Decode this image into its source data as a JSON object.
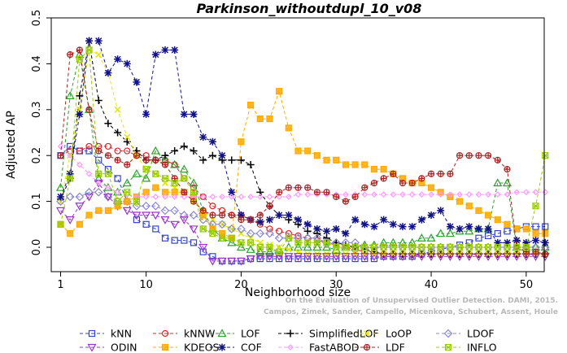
{
  "watermark": {
    "line1": "Campos, Zimek, Sander, Campello, Micenkova, Schubert, Assent, Houle",
    "line2": "On the Evaluation of Unsupervised Outlier Detection. DAMI, 2015."
  },
  "chart_data": {
    "type": "line",
    "title": "Parkinson_withoutdupl_10_v08",
    "xlabel": "Neighborhood size",
    "ylabel": "Adjusted AP",
    "xlim": [
      1,
      52
    ],
    "ylim": [
      -0.04,
      0.5
    ],
    "xticks": [
      1,
      10,
      20,
      30,
      40,
      50
    ],
    "yticks": [
      0.0,
      0.1,
      0.2,
      0.3,
      0.4,
      0.5
    ],
    "grid": false,
    "legend_position": "bottom",
    "x": [
      1,
      2,
      3,
      4,
      5,
      6,
      7,
      8,
      9,
      10,
      11,
      12,
      13,
      14,
      15,
      16,
      17,
      18,
      19,
      20,
      21,
      22,
      23,
      24,
      25,
      26,
      27,
      28,
      29,
      30,
      31,
      32,
      33,
      34,
      35,
      36,
      37,
      38,
      39,
      40,
      41,
      42,
      43,
      44,
      45,
      46,
      47,
      48,
      49,
      50,
      51,
      52
    ],
    "series": [
      {
        "name": "kNN",
        "color": "#3344cc",
        "marker": "square",
        "dash": "4,3",
        "values": [
          0.2,
          0.22,
          0.21,
          0.21,
          0.19,
          0.17,
          0.15,
          0.1,
          0.06,
          0.05,
          0.04,
          0.02,
          0.015,
          0.015,
          0.01,
          -0.01,
          -0.02,
          -0.03,
          -0.03,
          -0.03,
          -0.025,
          -0.025,
          -0.025,
          -0.025,
          -0.025,
          -0.025,
          -0.025,
          -0.025,
          -0.025,
          -0.025,
          -0.025,
          -0.025,
          -0.025,
          -0.025,
          -0.02,
          -0.02,
          -0.02,
          -0.02,
          -0.015,
          -0.01,
          -0.005,
          0.0,
          0.005,
          0.01,
          0.02,
          0.025,
          0.03,
          0.035,
          0.04,
          0.045,
          0.045,
          0.045
        ]
      },
      {
        "name": "kNNW",
        "color": "#d62728",
        "marker": "circle",
        "dash": "4,3",
        "values": [
          0.2,
          0.21,
          0.21,
          0.22,
          0.22,
          0.22,
          0.21,
          0.21,
          0.2,
          0.2,
          0.19,
          0.19,
          0.18,
          0.15,
          0.13,
          0.11,
          0.09,
          0.08,
          0.07,
          0.07,
          0.06,
          0.05,
          0.04,
          0.035,
          0.03,
          0.025,
          0.02,
          0.015,
          0.01,
          0.005,
          0.0,
          -0.005,
          -0.01,
          -0.01,
          -0.015,
          -0.015,
          -0.015,
          -0.015,
          -0.015,
          -0.015,
          -0.015,
          -0.015,
          -0.015,
          -0.015,
          -0.015,
          -0.015,
          -0.015,
          -0.015,
          -0.015,
          -0.015,
          -0.015,
          -0.015
        ]
      },
      {
        "name": "LOF",
        "color": "#2ca02c",
        "marker": "triangle-up",
        "dash": "4,3",
        "values": [
          0.13,
          0.33,
          0.42,
          0.3,
          0.15,
          0.13,
          0.12,
          0.14,
          0.16,
          0.15,
          0.21,
          0.19,
          0.18,
          0.17,
          0.14,
          0.08,
          0.04,
          0.02,
          0.01,
          0.0,
          -0.005,
          -0.01,
          -0.01,
          -0.005,
          0.0,
          0.0,
          0.0,
          0.0,
          0.0,
          -0.005,
          0.0,
          0.0,
          0.005,
          0.005,
          0.01,
          0.01,
          0.01,
          0.01,
          0.02,
          0.02,
          0.03,
          0.03,
          0.035,
          0.035,
          0.04,
          0.04,
          0.14,
          0.14,
          0.0,
          0.0,
          0.0,
          0.0
        ]
      },
      {
        "name": "SimplifiedLOF",
        "color": "#000000",
        "marker": "plus",
        "dash": "4,3",
        "values": [
          0.105,
          0.15,
          0.33,
          0.45,
          0.32,
          0.27,
          0.25,
          0.23,
          0.21,
          0.19,
          0.19,
          0.2,
          0.21,
          0.22,
          0.21,
          0.19,
          0.2,
          0.19,
          0.19,
          0.19,
          0.18,
          0.12,
          0.09,
          0.07,
          0.06,
          0.05,
          0.035,
          0.03,
          0.02,
          0.01,
          0.005,
          0.0,
          -0.005,
          -0.01,
          -0.015,
          -0.015,
          -0.015,
          -0.015,
          -0.015,
          -0.015,
          -0.015,
          -0.015,
          -0.015,
          -0.015,
          -0.015,
          -0.015,
          -0.015,
          -0.015,
          -0.015,
          -0.015,
          -0.015,
          -0.015
        ]
      },
      {
        "name": "LoOP",
        "color": "#e6e600",
        "marker": "x",
        "dash": "4,3",
        "values": [
          0.1,
          0.2,
          0.3,
          0.43,
          0.42,
          0.38,
          0.3,
          0.24,
          0.2,
          0.17,
          0.16,
          0.14,
          0.13,
          0.12,
          0.1,
          0.08,
          0.06,
          0.05,
          0.04,
          0.03,
          0.02,
          0.01,
          0.005,
          0.0,
          -0.005,
          -0.01,
          -0.015,
          -0.015,
          -0.015,
          -0.015,
          -0.015,
          -0.015,
          -0.015,
          -0.015,
          -0.015,
          -0.015,
          -0.015,
          -0.015,
          -0.015,
          -0.015,
          -0.015,
          -0.015,
          -0.015,
          -0.015,
          -0.015,
          -0.015,
          -0.015,
          -0.015,
          -0.015,
          -0.015,
          -0.015,
          -0.015
        ]
      },
      {
        "name": "LDOF",
        "color": "#8888cc",
        "marker": "diamond",
        "dash": "4,3",
        "values": [
          0.1,
          0.11,
          0.11,
          0.12,
          0.12,
          0.11,
          0.1,
          0.1,
          0.09,
          0.09,
          0.09,
          0.08,
          0.08,
          0.07,
          0.07,
          0.06,
          0.05,
          0.05,
          0.04,
          0.04,
          0.03,
          0.03,
          0.03,
          0.02,
          0.02,
          0.02,
          0.02,
          0.02,
          0.01,
          0.01,
          0.01,
          0.01,
          0.0,
          0.0,
          0.0,
          0.0,
          0.0,
          0.0,
          0.0,
          0.0,
          0.0,
          0.0,
          0.0,
          0.0,
          0.0,
          0.0,
          0.0,
          0.0,
          0.0,
          0.0,
          0.0,
          0.0
        ]
      },
      {
        "name": "ODIN",
        "color": "#9933cc",
        "marker": "triangle-down",
        "dash": "4,3",
        "values": [
          0.08,
          0.06,
          0.09,
          0.11,
          0.14,
          0.11,
          0.09,
          0.08,
          0.07,
          0.07,
          0.07,
          0.06,
          0.05,
          0.06,
          0.04,
          0.0,
          -0.03,
          -0.03,
          -0.03,
          -0.03,
          -0.025,
          -0.02,
          -0.02,
          -0.02,
          -0.02,
          -0.02,
          -0.02,
          -0.02,
          -0.02,
          -0.02,
          -0.02,
          -0.02,
          -0.02,
          -0.02,
          -0.02,
          -0.02,
          -0.02,
          -0.02,
          -0.02,
          -0.02,
          -0.02,
          -0.02,
          -0.02,
          -0.02,
          -0.02,
          -0.02,
          -0.02,
          -0.02,
          -0.02,
          -0.02,
          -0.02,
          -0.02
        ]
      },
      {
        "name": "KDEOS",
        "color": "#ffaa00",
        "marker": "square-filled",
        "dash": "4,3",
        "values": [
          0.05,
          0.03,
          0.05,
          0.07,
          0.08,
          0.08,
          0.09,
          0.1,
          0.11,
          0.12,
          0.13,
          0.12,
          0.12,
          0.12,
          0.11,
          0.07,
          0.04,
          0.03,
          0.02,
          0.23,
          0.31,
          0.28,
          0.28,
          0.34,
          0.26,
          0.21,
          0.21,
          0.2,
          0.19,
          0.19,
          0.18,
          0.18,
          0.18,
          0.17,
          0.17,
          0.16,
          0.15,
          0.14,
          0.14,
          0.13,
          0.12,
          0.11,
          0.1,
          0.09,
          0.08,
          0.07,
          0.06,
          0.05,
          0.04,
          0.04,
          0.03,
          0.03
        ]
      },
      {
        "name": "COF",
        "color": "#111188",
        "marker": "asterisk",
        "dash": "4,3",
        "values": [
          0.11,
          0.16,
          0.29,
          0.45,
          0.45,
          0.38,
          0.41,
          0.4,
          0.36,
          0.29,
          0.42,
          0.43,
          0.43,
          0.29,
          0.29,
          0.24,
          0.23,
          0.2,
          0.12,
          0.07,
          0.06,
          0.055,
          0.06,
          0.07,
          0.07,
          0.06,
          0.05,
          0.04,
          0.035,
          0.04,
          0.03,
          0.06,
          0.05,
          0.045,
          0.06,
          0.05,
          0.045,
          0.045,
          0.06,
          0.07,
          0.08,
          0.045,
          0.04,
          0.045,
          0.04,
          0.04,
          0.01,
          0.01,
          0.015,
          0.01,
          0.015,
          0.01
        ]
      },
      {
        "name": "FastABOD",
        "color": "#ff99ff",
        "marker": "diamond-small",
        "dash": "4,3",
        "values": [
          0.22,
          0.2,
          0.18,
          0.16,
          0.14,
          0.13,
          0.12,
          0.115,
          0.11,
          0.11,
          0.11,
          0.11,
          0.11,
          0.11,
          0.11,
          0.11,
          0.11,
          0.11,
          0.11,
          0.11,
          0.11,
          0.11,
          0.11,
          0.11,
          0.11,
          0.115,
          0.115,
          0.115,
          0.115,
          0.115,
          0.115,
          0.115,
          0.115,
          0.115,
          0.115,
          0.115,
          0.115,
          0.115,
          0.115,
          0.115,
          0.115,
          0.115,
          0.115,
          0.115,
          0.115,
          0.115,
          0.115,
          0.115,
          0.12,
          0.12,
          0.12,
          0.12
        ]
      },
      {
        "name": "LDF",
        "color": "#aa2222",
        "marker": "circle-plus",
        "dash": "4,3",
        "values": [
          0.2,
          0.42,
          0.43,
          0.3,
          0.21,
          0.2,
          0.19,
          0.18,
          0.2,
          0.19,
          0.19,
          0.18,
          0.15,
          0.12,
          0.1,
          0.08,
          0.07,
          0.07,
          0.07,
          0.06,
          0.06,
          0.07,
          0.09,
          0.12,
          0.13,
          0.13,
          0.13,
          0.12,
          0.12,
          0.11,
          0.1,
          0.11,
          0.13,
          0.14,
          0.15,
          0.16,
          0.14,
          0.14,
          0.15,
          0.16,
          0.16,
          0.16,
          0.2,
          0.2,
          0.2,
          0.2,
          0.19,
          0.17,
          0.0,
          -0.01,
          -0.01,
          -0.015
        ]
      },
      {
        "name": "INFLO",
        "color": "#99cc00",
        "marker": "star-box",
        "dash": "4,3",
        "values": [
          0.05,
          0.15,
          0.41,
          0.43,
          0.16,
          0.16,
          0.1,
          0.12,
          0.1,
          0.17,
          0.16,
          0.15,
          0.14,
          0.15,
          0.12,
          0.04,
          0.03,
          0.02,
          0.02,
          0.01,
          0.01,
          0.0,
          0.0,
          -0.01,
          0.02,
          0.01,
          0.01,
          0.01,
          0.01,
          0.0,
          0.0,
          0.0,
          0.0,
          0.0,
          0.0,
          0.0,
          0.0,
          0.0,
          0.0,
          0.0,
          0.0,
          0.0,
          0.0,
          0.0,
          0.0,
          0.0,
          0.0,
          0.0,
          0.0,
          0.0,
          0.09,
          0.2
        ]
      }
    ]
  }
}
